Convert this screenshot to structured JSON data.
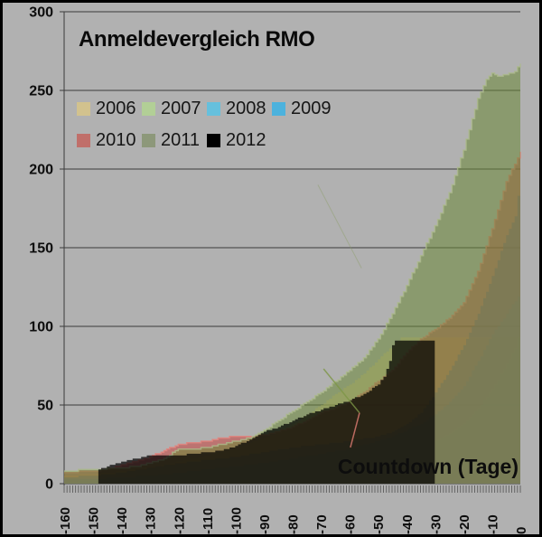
{
  "chart_data": {
    "type": "area",
    "title": "Anmeldevergleich RMO",
    "xlabel": "Countdown (Tage)",
    "ylabel": "",
    "xlim": [
      -160,
      0
    ],
    "ylim": [
      0,
      300
    ],
    "x_ticks": [
      -160,
      -150,
      -140,
      -130,
      -120,
      -110,
      -100,
      -90,
      -80,
      -70,
      -60,
      -50,
      -40,
      -30,
      -20,
      -10,
      0
    ],
    "y_ticks": [
      0,
      50,
      100,
      150,
      200,
      250,
      300
    ],
    "grid": true,
    "legend_position": "top-left, two rows",
    "background_color": "#b1b1b1",
    "gridline_color": "#3c3c3c",
    "series": [
      {
        "name": "2006",
        "legend_color": "#d2c28e",
        "area_color": "rgba(225,205,130,0.50)",
        "points": [
          [
            -160,
            5
          ],
          [
            -150,
            6
          ],
          [
            -140,
            8
          ],
          [
            -130,
            10
          ],
          [
            -120,
            14
          ],
          [
            -110,
            18
          ],
          [
            -100,
            23
          ],
          [
            -95,
            26
          ],
          [
            -90,
            29
          ],
          [
            -85,
            33
          ],
          [
            -80,
            38
          ],
          [
            -75,
            44
          ],
          [
            -70,
            50
          ],
          [
            -65,
            57
          ],
          [
            -60,
            63
          ],
          [
            -55,
            70
          ],
          [
            -50,
            79
          ],
          [
            -45,
            88
          ],
          [
            -42,
            93
          ],
          [
            0,
            93
          ]
        ]
      },
      {
        "name": "2007",
        "legend_color": "#b2cf96",
        "area_color": "rgba(150,215,130,0.55)",
        "points": [
          [
            -160,
            1
          ],
          [
            -150,
            2
          ],
          [
            -140,
            2
          ],
          [
            -130,
            3
          ],
          [
            -120,
            3
          ],
          [
            -110,
            4
          ],
          [
            -100,
            4
          ],
          [
            -90,
            5
          ],
          [
            -80,
            6
          ],
          [
            -70,
            8
          ],
          [
            -60,
            10
          ],
          [
            -50,
            13
          ],
          [
            -45,
            15
          ],
          [
            -40,
            18
          ],
          [
            -35,
            22
          ],
          [
            -30,
            27
          ],
          [
            -25,
            32
          ],
          [
            -20,
            38
          ],
          [
            -15,
            48
          ],
          [
            -10,
            60
          ],
          [
            -5,
            76
          ],
          [
            -2,
            86
          ],
          [
            0,
            100
          ]
        ]
      },
      {
        "name": "2008",
        "legend_color": "#66c0dd",
        "area_color": "rgba(60,195,230,0.55)",
        "points": [
          [
            -160,
            3
          ],
          [
            -150,
            3
          ],
          [
            -140,
            4
          ],
          [
            -130,
            5
          ],
          [
            -120,
            7
          ],
          [
            -110,
            9
          ],
          [
            -100,
            11
          ],
          [
            -90,
            13
          ],
          [
            -80,
            16
          ],
          [
            -70,
            19
          ],
          [
            -60,
            22
          ],
          [
            -50,
            27
          ],
          [
            -45,
            30
          ],
          [
            -40,
            34
          ],
          [
            -35,
            38
          ],
          [
            -30,
            44
          ],
          [
            -25,
            52
          ],
          [
            -20,
            62
          ],
          [
            -15,
            78
          ],
          [
            -10,
            95
          ],
          [
            -5,
            108
          ],
          [
            0,
            122
          ]
        ]
      },
      {
        "name": "2009",
        "legend_color": "#4cb2dd",
        "area_color": "rgba(30,145,215,0.60)",
        "points": [
          [
            -160,
            4
          ],
          [
            -150,
            5
          ],
          [
            -140,
            7
          ],
          [
            -130,
            10
          ],
          [
            -120,
            13
          ],
          [
            -110,
            15
          ],
          [
            -100,
            17
          ],
          [
            -90,
            20
          ],
          [
            -80,
            23
          ],
          [
            -70,
            25
          ],
          [
            -60,
            27
          ],
          [
            -50,
            30
          ],
          [
            -45,
            33
          ],
          [
            -40,
            38
          ],
          [
            -35,
            45
          ],
          [
            -30,
            58
          ],
          [
            -25,
            72
          ],
          [
            -20,
            88
          ],
          [
            -15,
            108
          ],
          [
            -10,
            132
          ],
          [
            -5,
            158
          ],
          [
            -2,
            170
          ],
          [
            0,
            196
          ]
        ]
      },
      {
        "name": "2010",
        "legend_color": "#c06f6a",
        "area_color": "rgba(195,75,70,0.60)",
        "edge_color": "rgba(226,132,126,0.85)",
        "points": [
          [
            -160,
            7
          ],
          [
            -150,
            8
          ],
          [
            -145,
            9
          ],
          [
            -140,
            12
          ],
          [
            -135,
            14
          ],
          [
            -130,
            17
          ],
          [
            -125,
            21
          ],
          [
            -120,
            25
          ],
          [
            -115,
            26
          ],
          [
            -110,
            27
          ],
          [
            -105,
            29
          ],
          [
            -100,
            30
          ],
          [
            -95,
            30
          ],
          [
            -90,
            31
          ],
          [
            -85,
            33
          ],
          [
            -80,
            36
          ],
          [
            -75,
            40
          ],
          [
            -70,
            45
          ],
          [
            -65,
            48
          ],
          [
            -60,
            52
          ],
          [
            -55,
            58
          ],
          [
            -50,
            65
          ],
          [
            -45,
            72
          ],
          [
            -40,
            83
          ],
          [
            -35,
            92
          ],
          [
            -30,
            98
          ],
          [
            -25,
            105
          ],
          [
            -20,
            115
          ],
          [
            -15,
            135
          ],
          [
            -10,
            162
          ],
          [
            -5,
            192
          ],
          [
            0,
            211
          ]
        ]
      },
      {
        "name": "2011",
        "legend_color": "#8d987a",
        "area_color": "rgba(105,135,55,0.55)",
        "edge_color": "rgba(172,186,140,0.8)",
        "points": [
          [
            -160,
            8
          ],
          [
            -150,
            9
          ],
          [
            -140,
            10
          ],
          [
            -135,
            11
          ],
          [
            -130,
            13
          ],
          [
            -125,
            16
          ],
          [
            -120,
            22
          ],
          [
            -115,
            22
          ],
          [
            -110,
            23
          ],
          [
            -105,
            25
          ],
          [
            -100,
            27
          ],
          [
            -95,
            29
          ],
          [
            -90,
            34
          ],
          [
            -85,
            40
          ],
          [
            -80,
            46
          ],
          [
            -75,
            52
          ],
          [
            -70,
            58
          ],
          [
            -65,
            65
          ],
          [
            -60,
            72
          ],
          [
            -55,
            80
          ],
          [
            -50,
            92
          ],
          [
            -45,
            108
          ],
          [
            -40,
            126
          ],
          [
            -35,
            145
          ],
          [
            -30,
            164
          ],
          [
            -25,
            185
          ],
          [
            -20,
            212
          ],
          [
            -15,
            245
          ],
          [
            -12,
            257
          ],
          [
            -10,
            261
          ],
          [
            -8,
            259
          ],
          [
            -5,
            260
          ],
          [
            -2,
            262
          ],
          [
            0,
            267
          ]
        ]
      },
      {
        "name": "2012",
        "legend_color": "#000000",
        "area_color": "rgba(0,0,0,0.72)",
        "points": [
          [
            -148,
            9
          ],
          [
            -145,
            11
          ],
          [
            -140,
            14
          ],
          [
            -135,
            16
          ],
          [
            -130,
            18
          ],
          [
            -125,
            18
          ],
          [
            -120,
            18
          ],
          [
            -115,
            19
          ],
          [
            -110,
            20
          ],
          [
            -105,
            21
          ],
          [
            -100,
            24
          ],
          [
            -95,
            28
          ],
          [
            -90,
            33
          ],
          [
            -85,
            36
          ],
          [
            -80,
            40
          ],
          [
            -75,
            44
          ],
          [
            -70,
            47
          ],
          [
            -65,
            50
          ],
          [
            -60,
            53
          ],
          [
            -55,
            57
          ],
          [
            -50,
            63
          ],
          [
            -48,
            68
          ],
          [
            -46,
            78
          ],
          [
            -45,
            88
          ],
          [
            -44,
            91
          ],
          [
            -30,
            91
          ]
        ]
      }
    ],
    "annotations": [
      {
        "from": [
          -71,
          190
        ],
        "to": [
          -55.7,
          137
        ],
        "color": "rgba(135,155,95,0.40)",
        "width": 1
      },
      {
        "from": [
          -69,
          73
        ],
        "to": [
          -56.4,
          45
        ],
        "color": "rgba(125,150,70,0.80)",
        "width": 1.5
      },
      {
        "from": [
          -56.4,
          45
        ],
        "to": [
          -59.6,
          23
        ],
        "color": "rgba(225,125,115,0.80)",
        "width": 1.5
      }
    ]
  },
  "frame": {
    "border_color": "#000000"
  }
}
